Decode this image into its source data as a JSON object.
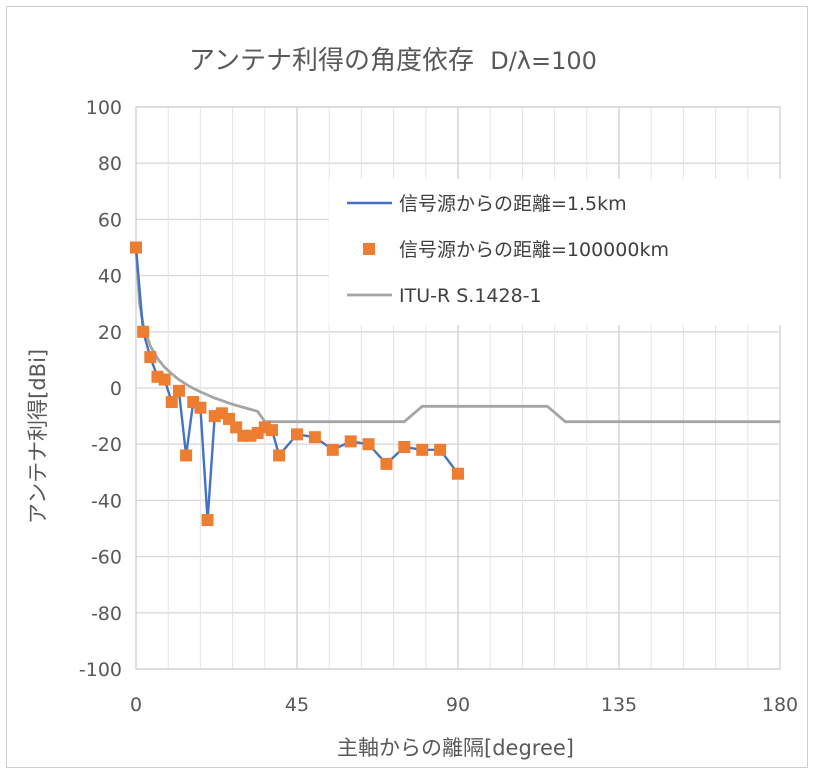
{
  "chart_data": {
    "type": "line",
    "title": "アンテナ利得の角度依存",
    "title_suffix": "D/λ=100",
    "xlabel": "主軸からの離隔[degree]",
    "ylabel": "アンテナ利得[dBi]",
    "xlim": [
      0,
      180
    ],
    "ylim": [
      -100,
      100
    ],
    "xticks": [
      "0",
      "45",
      "90",
      "135",
      "180"
    ],
    "yticks": [
      "100",
      "80",
      "60",
      "40",
      "20",
      "0",
      "-20",
      "-40",
      "-60",
      "-80",
      "-100"
    ],
    "grid": true,
    "legend_position": "top-right",
    "series": [
      {
        "name": "信号源からの距離=1.5km",
        "kind": "line",
        "color": "#4472C4",
        "x": [
          0,
          2,
          4,
          6,
          8,
          10,
          12,
          14,
          16,
          18,
          20,
          22,
          24,
          26,
          28,
          30,
          32,
          34,
          36,
          38,
          40,
          45,
          50,
          55,
          60,
          65,
          70,
          75,
          80,
          85,
          90
        ],
        "y": [
          50,
          20,
          11,
          4,
          3,
          -5,
          -1,
          -24,
          -5,
          -7,
          -47,
          -10,
          -9,
          -11,
          -14,
          -17,
          -17,
          -16,
          -14,
          -15,
          -24,
          -16.5,
          -17.5,
          -22,
          -19,
          -20,
          -27,
          -21,
          -22,
          -22,
          -30.5
        ]
      },
      {
        "name": "信号源からの距離=100000km",
        "kind": "marker",
        "color": "#ED7D31",
        "x": [
          0,
          2,
          4,
          6,
          8,
          10,
          12,
          14,
          16,
          18,
          20,
          22,
          24,
          26,
          28,
          30,
          32,
          34,
          36,
          38,
          40,
          45,
          50,
          55,
          60,
          65,
          70,
          75,
          80,
          85,
          90
        ],
        "y": [
          50,
          20,
          11,
          4,
          3,
          -5,
          -1,
          -24,
          -5,
          -7,
          -47,
          -10,
          -9,
          -11,
          -14,
          -17,
          -17,
          -16,
          -14,
          -15,
          -24,
          -16.5,
          -17.5,
          -22,
          -19,
          -20,
          -27,
          -21,
          -22,
          -22,
          -30.5
        ]
      },
      {
        "name": "ITU-R S.1428-1",
        "kind": "line",
        "color": "#A5A5A5",
        "x": [
          0,
          1,
          2,
          4,
          6,
          8,
          10,
          12,
          14,
          16,
          18,
          20,
          22,
          24,
          26,
          28,
          30,
          32,
          34,
          36,
          75,
          80,
          115,
          120,
          180
        ],
        "y": [
          50,
          30,
          22.5,
          15,
          10.5,
          7.4,
          5,
          3,
          1.3,
          -0.1,
          -1.4,
          -2.5,
          -3.6,
          -4.5,
          -5.4,
          -6.2,
          -6.9,
          -7.6,
          -8.3,
          -12,
          -12,
          -6.5,
          -6.5,
          -12,
          -12
        ]
      }
    ]
  }
}
